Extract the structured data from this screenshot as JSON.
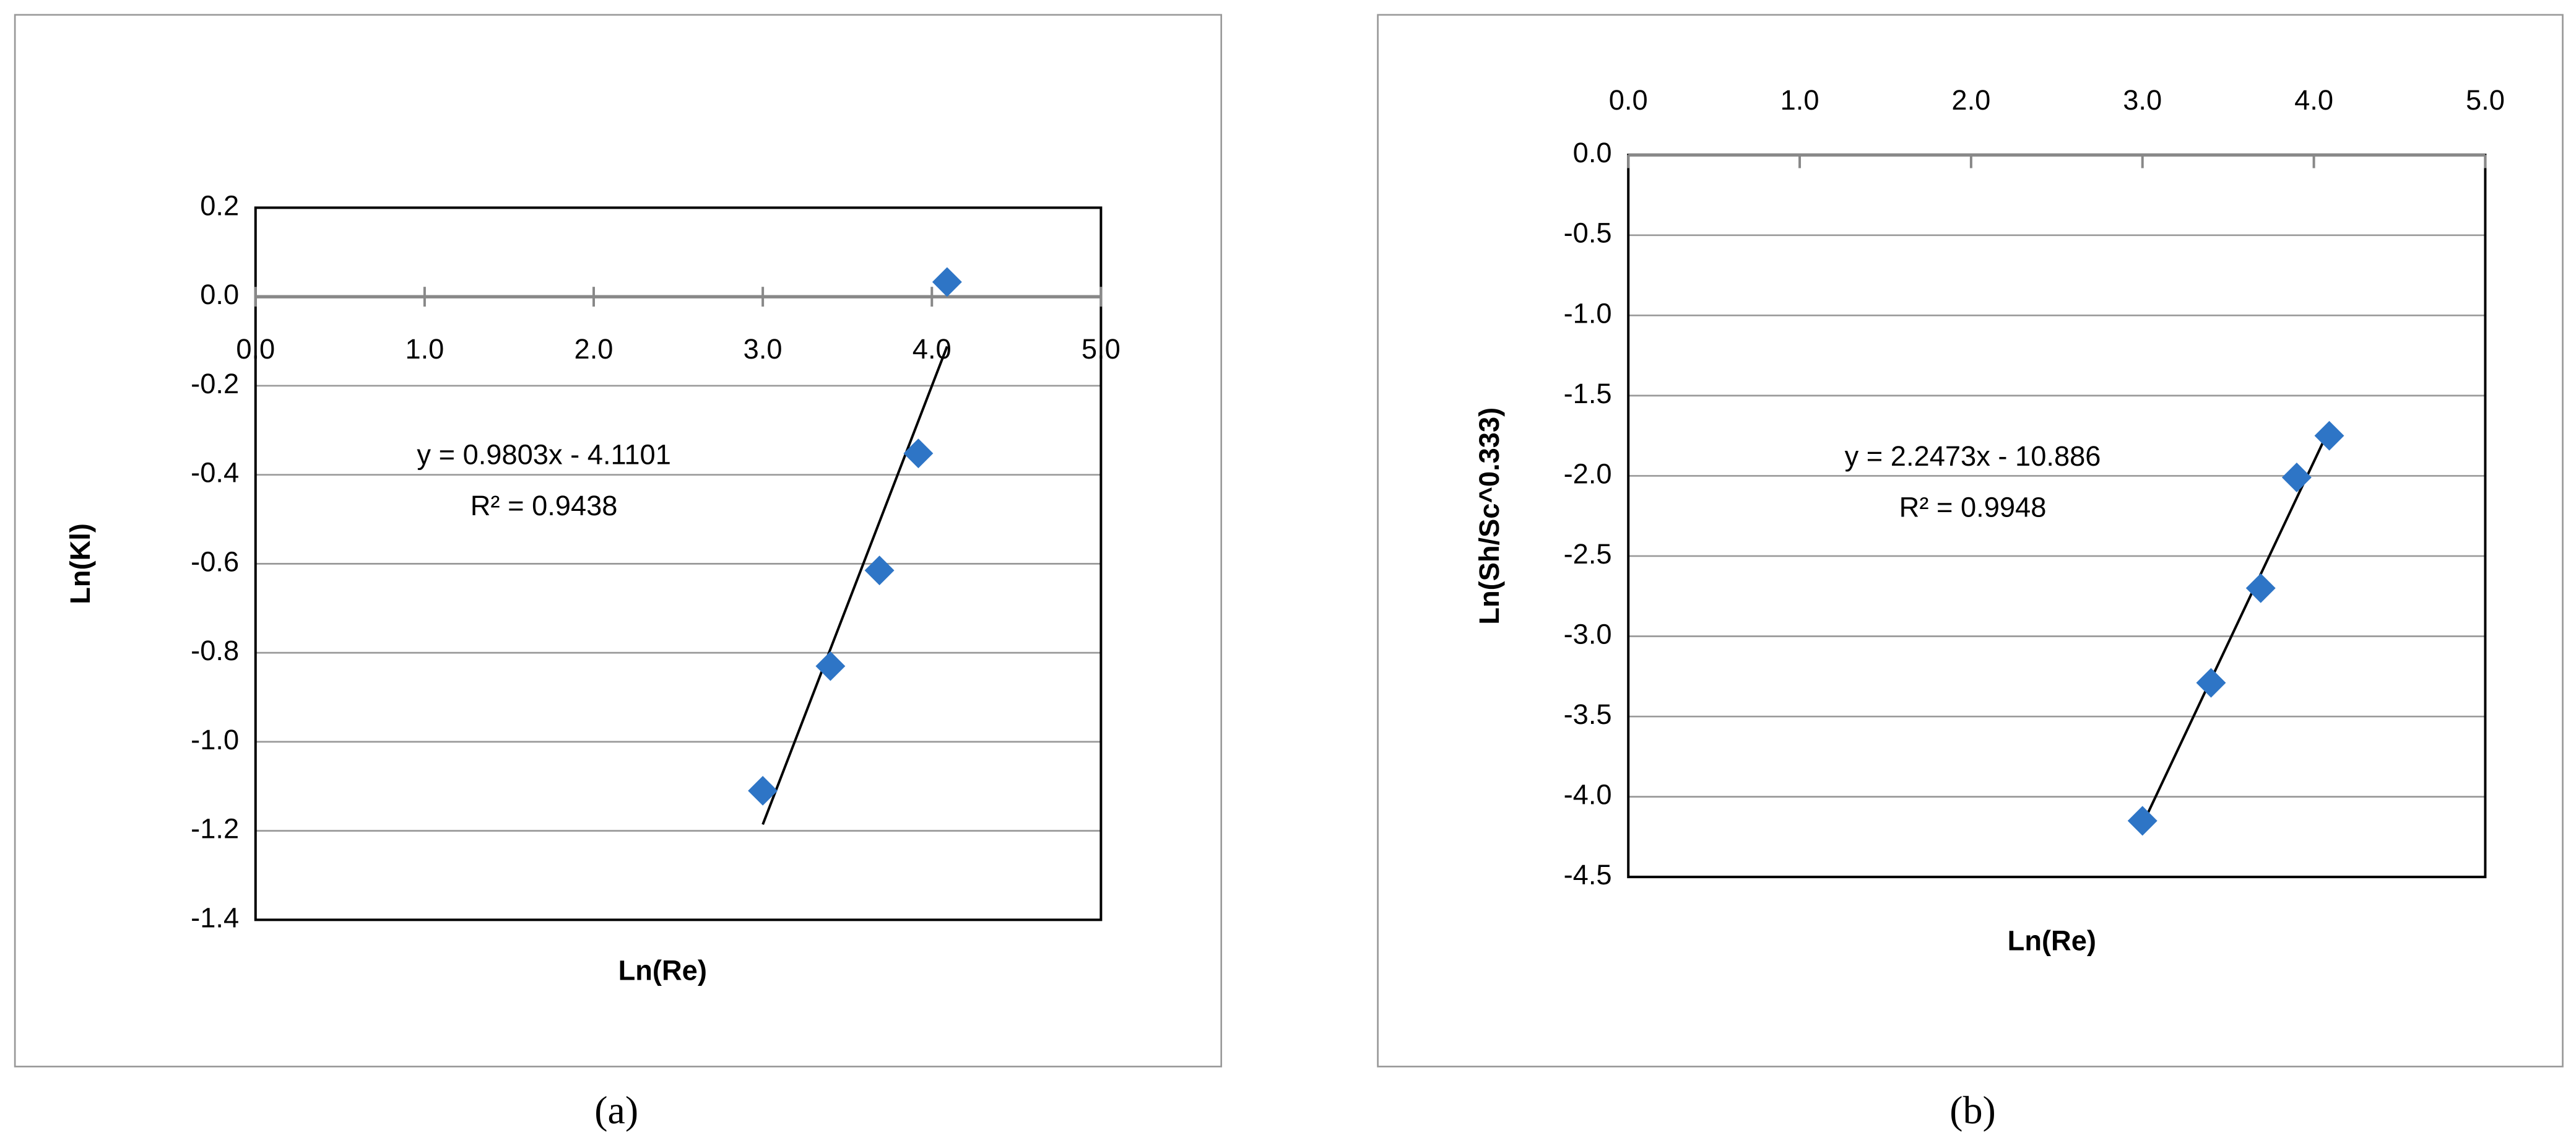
{
  "chart_data": [
    {
      "type": "scatter",
      "caption": "(a)",
      "xlabel": "Ln(Re)",
      "ylabel": "Ln(Kl)",
      "annotations": [
        "y = 0.9803x - 4.1101",
        "R² = 0.9438"
      ],
      "x": [
        3.0,
        3.4,
        3.69,
        3.92,
        4.09
      ],
      "values": [
        -1.11,
        -0.83,
        -0.615,
        -0.352,
        0.033
      ],
      "color": "#2e75c6",
      "trendline": true,
      "grid": true,
      "xtick_labels": "below",
      "xlim": [
        0,
        5
      ],
      "xticks": [
        {
          "value": 0,
          "label": "0.0"
        },
        {
          "value": 1,
          "label": "1.0"
        },
        {
          "value": 2,
          "label": "2.0"
        },
        {
          "value": 3,
          "label": "3.0"
        },
        {
          "value": 4,
          "label": "4.0"
        },
        {
          "value": 5,
          "label": "5.0"
        }
      ],
      "ylim": [
        -1.4,
        0.2
      ],
      "yticks": [
        -1.4,
        -1.2,
        {
          "value": -1,
          "label": "-1.0"
        },
        -0.8,
        -0.6,
        -0.4,
        -0.2,
        {
          "value": 0,
          "label": "0.0"
        },
        0.2
      ]
    },
    {
      "type": "scatter",
      "caption": "(b)",
      "xlabel": "Ln(Re)",
      "ylabel": "Ln(Sh/Sc^0.333)",
      "annotations": [
        "y = 2.2473x - 10.886",
        "R² = 0.9948"
      ],
      "x": [
        3.0,
        3.4,
        3.69,
        3.9,
        4.09
      ],
      "values": [
        -4.15,
        -3.29,
        -2.7,
        -2.01,
        -1.75
      ],
      "color": "#2e75c6",
      "trendline": true,
      "grid": true,
      "xtick_labels": "above",
      "xlim": [
        0,
        5
      ],
      "xticks": [
        {
          "value": 0,
          "label": "0.0"
        },
        {
          "value": 1,
          "label": "1.0"
        },
        {
          "value": 2,
          "label": "2.0"
        },
        {
          "value": 3,
          "label": "3.0"
        },
        {
          "value": 4,
          "label": "4.0"
        },
        {
          "value": 5,
          "label": "5.0"
        }
      ],
      "ylim": [
        -4.5,
        0
      ],
      "yticks": [
        {
          "value": -4.5,
          "label": "-4.5"
        },
        {
          "value": -4,
          "label": "-4.0"
        },
        -3.5,
        {
          "value": -3,
          "label": "-3.0"
        },
        -2.5,
        {
          "value": -2,
          "label": "-2.0"
        },
        -1.5,
        {
          "value": -1,
          "label": "-1.0"
        },
        -0.5,
        {
          "value": 0,
          "label": "0.0"
        }
      ]
    }
  ]
}
